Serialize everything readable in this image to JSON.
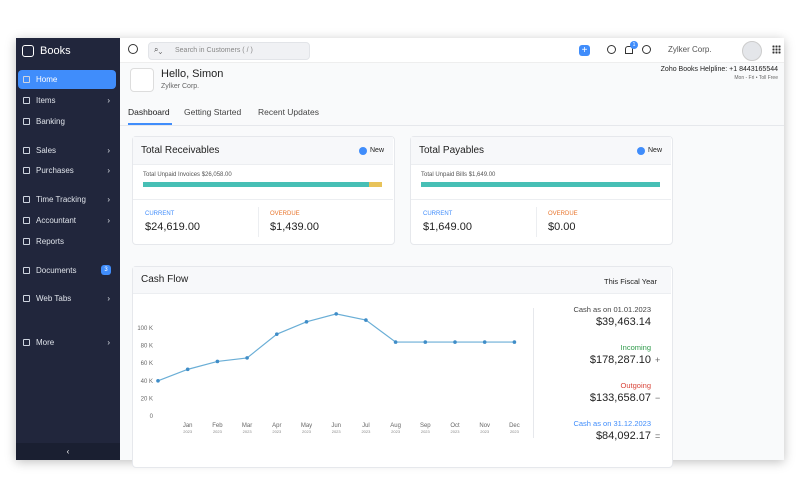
{
  "sidebar": {
    "brand": "Books",
    "items": [
      "Home",
      "Items",
      "Banking",
      "Sales",
      "Purchases",
      "Time Tracking",
      "Accountant",
      "Reports",
      "Documents",
      "Web Tabs",
      "More"
    ],
    "badge": "3"
  },
  "topbar": {
    "search": "Search in Customers ( / )",
    "notifications": "1",
    "org": "Zylker Corp.",
    "helpline": "Zoho Books Helpline: +1 8443165544",
    "hours": "Mon - Fri • Toll Free"
  },
  "header": {
    "greeting": "Hello, Simon",
    "org": "Zylker Corp.",
    "tabs": [
      "Dashboard",
      "Getting Started",
      "Recent Updates"
    ]
  },
  "receivables": {
    "title": "Total Receivables",
    "new": "New",
    "unpaid": "Total Unpaid Invoices $26,058.00",
    "current_label": "CURRENT",
    "current": "$24,619.00",
    "overdue_label": "OVERDUE",
    "overdue": "$1,439.00"
  },
  "payables": {
    "title": "Total Payables",
    "new": "New",
    "unpaid": "Total Unpaid Bills $1,649.00",
    "current_label": "CURRENT",
    "current": "$1,649.00",
    "overdue_label": "OVERDUE",
    "overdue": "$0.00"
  },
  "cash_flow": {
    "title": "Cash Flow",
    "period": "This Fiscal Year",
    "summary": [
      {
        "label": "Cash as on 01.01.2023",
        "value": "$39,463.14"
      },
      {
        "label": "Incoming",
        "value": "$178,287.10"
      },
      {
        "label": "Outgoing",
        "value": "$133,658.07"
      },
      {
        "label": "Cash as on 31.12.2023",
        "value": "$84,092.17"
      }
    ]
  },
  "chart_data": {
    "type": "line",
    "categories": [
      null,
      "Jan",
      "Feb",
      "Mar",
      "Apr",
      "May",
      "Jun",
      "Jul",
      "Aug",
      "Sep",
      "Oct",
      "Nov",
      "Dec"
    ],
    "category_years": [
      null,
      "2023",
      "2023",
      "2023",
      "2023",
      "2023",
      "2023",
      "2023",
      "2023",
      "2023",
      "2023",
      "2023",
      "2023"
    ],
    "series": [
      {
        "name": "Cash Flow",
        "color": "#6aaed6",
        "values": [
          40000,
          53000,
          62000,
          66000,
          93000,
          107000,
          116000,
          109000,
          84000,
          84000,
          84000,
          84000,
          84000
        ]
      }
    ],
    "ylim": [
      0,
      120000
    ],
    "yticks": [
      {
        "value": 0,
        "label": "0"
      },
      {
        "value": 20000,
        "label": "20 K"
      },
      {
        "value": 40000,
        "label": "40 K"
      },
      {
        "value": 60000,
        "label": "60 K"
      },
      {
        "value": 80000,
        "label": "80 K"
      },
      {
        "value": 100000,
        "label": "100 K"
      }
    ],
    "grid": false
  }
}
